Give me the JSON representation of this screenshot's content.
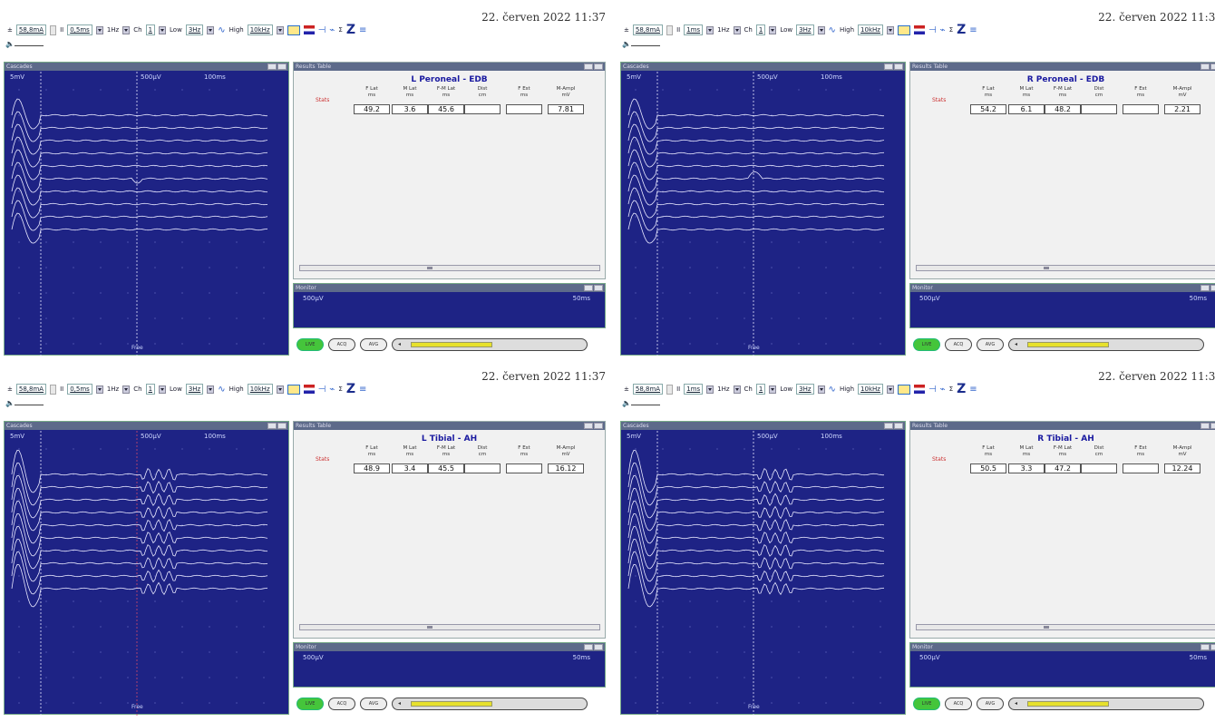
{
  "timestamp": "22. červen 2022 11:37",
  "toolbar": {
    "current": "58,8mA",
    "polarity": "II",
    "duration": [
      "0,5ms",
      "1ms",
      "0,5ms",
      "1ms"
    ],
    "rate": "1Hz",
    "channel_label": "Ch",
    "low_label": "Low",
    "low_value": "3Hz",
    "high_label": "High",
    "high_value": "10kHz"
  },
  "panels": [
    {
      "title": "L Peroneal - EDB",
      "results": {
        "F Lat": "49.2",
        "M Lat": "3.6",
        "F-M Lat": "45.6",
        "Dist": "",
        "F Est": "",
        "M-Ampl": "7.81"
      }
    },
    {
      "title": "R Peroneal - EDB",
      "results": {
        "F Lat": "54.2",
        "M Lat": "6.1",
        "F-M Lat": "48.2",
        "Dist": "",
        "F Est": "",
        "M-Ampl": "2.21"
      }
    },
    {
      "title": "L Tibial - AH",
      "results": {
        "F Lat": "48.9",
        "M Lat": "3.4",
        "F-M Lat": "45.5",
        "Dist": "",
        "F Est": "",
        "M-Ampl": "16.12"
      }
    },
    {
      "title": "R Tibial - AH",
      "results": {
        "F Lat": "50.5",
        "M Lat": "3.3",
        "F-M Lat": "47.2",
        "Dist": "",
        "F Est": "",
        "M-Ampl": "12.24"
      }
    }
  ],
  "cascades": {
    "title": "Cascades",
    "mv": "5mV",
    "uv": "500µV",
    "time": "100ms",
    "footer": "Free"
  },
  "results_table": {
    "title": "Results Table",
    "row_label": "Stats",
    "columns": [
      {
        "name": "F Lat",
        "unit": "ms"
      },
      {
        "name": "M Lat",
        "unit": "ms"
      },
      {
        "name": "F-M Lat",
        "unit": "ms"
      },
      {
        "name": "Dist",
        "unit": "cm"
      },
      {
        "name": "F Est",
        "unit": "ms"
      },
      {
        "name": "M-Ampl",
        "unit": "mV"
      }
    ]
  },
  "monitor": {
    "title": "Monitor",
    "sens": "500µV",
    "time": "50ms"
  },
  "controls": [
    "LIVE",
    "ACQ",
    "AVG"
  ],
  "colors": {
    "trace_bg": "#1e2385",
    "trace": "#e8e8ff",
    "title": "#1a1aa0"
  }
}
